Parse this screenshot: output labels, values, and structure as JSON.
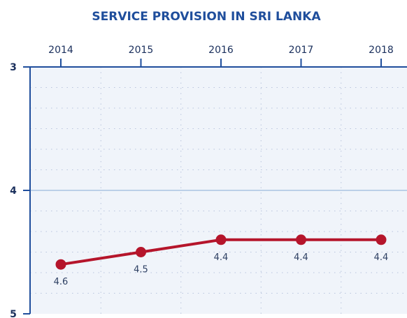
{
  "colors": {
    "title": "#1f4e9c",
    "axis": "#1f4e9c",
    "tick_label": "#1a2f5c",
    "plot_bg": "#f0f4fa",
    "grid_dot": "#b9c5dd",
    "midline": "#a9c3e2",
    "series": "#b5152b",
    "data_label": "#2d3f62"
  },
  "chart_data": {
    "type": "line",
    "title": "SERVICE PROVISION IN SRI LANKA",
    "xlabel": "",
    "ylabel": "",
    "x": [
      "2014",
      "2015",
      "2016",
      "2017",
      "2018"
    ],
    "xaxis_position": "top",
    "ylim": [
      3,
      5
    ],
    "y_inverted": true,
    "yticks": [
      "3",
      "4",
      "5"
    ],
    "grid": true,
    "series": [
      {
        "values": [
          4.6,
          4.5,
          4.4,
          4.4,
          4.4
        ],
        "labels": [
          "4.6",
          "4.5",
          "4.4",
          "4.4",
          "4.4"
        ]
      }
    ]
  }
}
